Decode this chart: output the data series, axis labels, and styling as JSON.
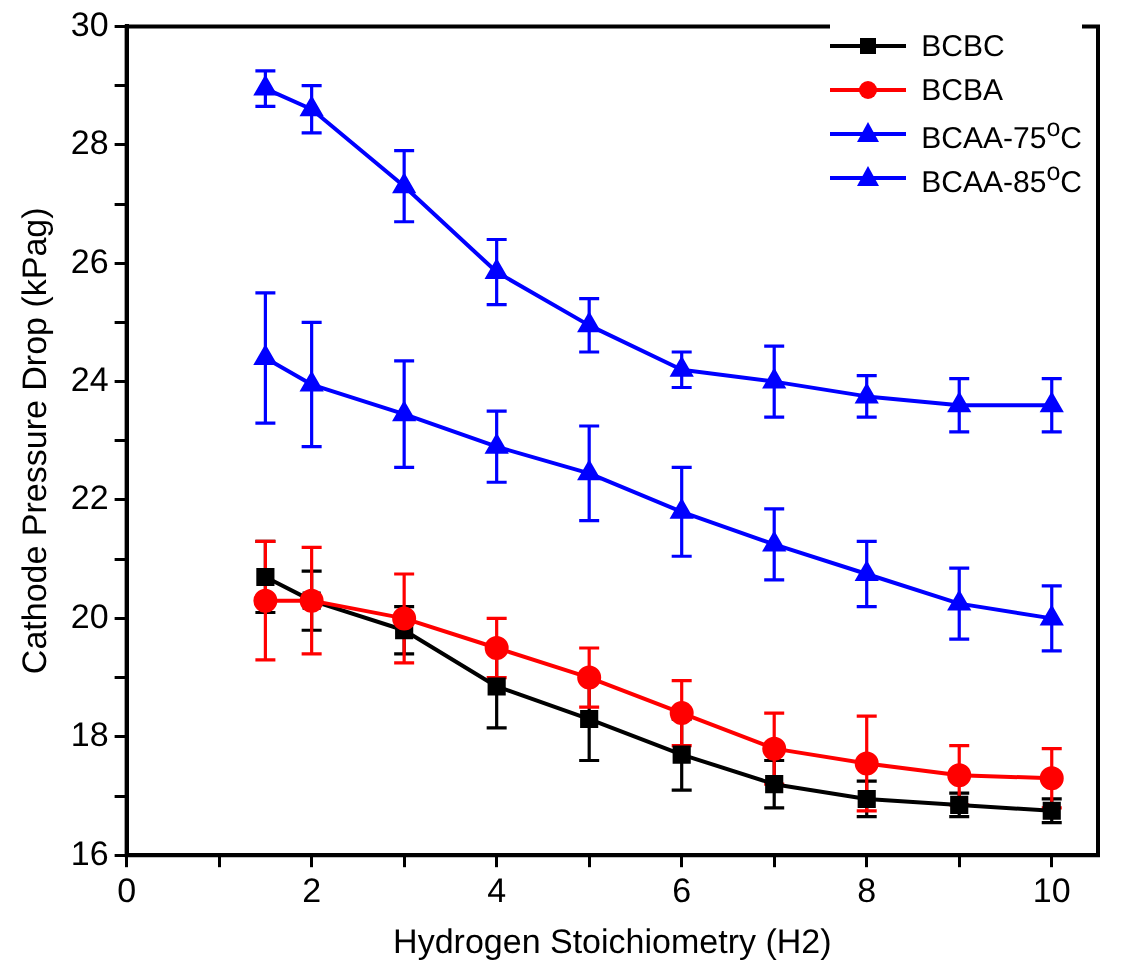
{
  "chart_data": {
    "type": "line",
    "xlabel": "Hydrogen Stoichiometry (H2)",
    "ylabel": "Cathode Pressure Drop (kPag)",
    "x": [
      1.5,
      2,
      3,
      4,
      5,
      6,
      7,
      8,
      9,
      10
    ],
    "xlim": [
      0,
      10.5
    ],
    "xticks": [
      0,
      {
        "value": 1,
        "label": null
      },
      2,
      {
        "value": 3,
        "label": null
      },
      4,
      {
        "value": 5,
        "label": null
      },
      6,
      {
        "value": 7,
        "label": null
      },
      8,
      {
        "value": 9,
        "label": null
      },
      10
    ],
    "ylim": [
      16,
      30
    ],
    "yticks": [
      16,
      {
        "value": 17,
        "label": null
      },
      18,
      {
        "value": 19,
        "label": null
      },
      20,
      {
        "value": 21,
        "label": null
      },
      22,
      {
        "value": 23,
        "label": null
      },
      24,
      {
        "value": 25,
        "label": null
      },
      26,
      {
        "value": 27,
        "label": null
      },
      28,
      {
        "value": 29,
        "label": null
      },
      30
    ],
    "grid": false,
    "legend": "top right",
    "line_style": "solid",
    "series": [
      {
        "name": "BCBC",
        "color": "#000000",
        "marker": "square",
        "values": [
          20.7,
          20.3,
          19.8,
          18.85,
          18.3,
          17.7,
          17.2,
          16.95,
          16.85,
          16.75
        ],
        "errors": [
          0.6,
          0.5,
          0.4,
          0.7,
          0.7,
          0.6,
          0.4,
          0.3,
          0.2,
          0.2
        ]
      },
      {
        "name": "BCBA",
        "color": "#ff0000",
        "marker": "circle",
        "values": [
          20.3,
          20.3,
          20.0,
          19.5,
          19.0,
          18.4,
          17.8,
          17.55,
          17.35,
          17.3
        ],
        "errors": [
          1.0,
          0.9,
          0.75,
          0.5,
          0.5,
          0.55,
          0.6,
          0.8,
          0.5,
          0.5
        ]
      },
      {
        "name": "BCAA-75$^{o}$C",
        "color": "#0000ff",
        "marker": "triangle",
        "values": [
          24.4,
          23.95,
          23.45,
          22.9,
          22.45,
          21.8,
          21.25,
          20.75,
          20.25,
          20.0
        ],
        "errors": [
          1.1,
          1.05,
          0.9,
          0.6,
          0.8,
          0.75,
          0.6,
          0.55,
          0.6,
          0.55
        ]
      },
      {
        "name": "BCAA-85$^{o}$C",
        "color": "#0000ff",
        "marker": "triangle",
        "values": [
          28.95,
          28.6,
          27.3,
          25.85,
          24.95,
          24.2,
          24.0,
          23.75,
          23.6,
          23.6
        ],
        "errors": [
          0.3,
          0.4,
          0.6,
          0.55,
          0.45,
          0.3,
          0.6,
          0.35,
          0.45,
          0.45
        ]
      }
    ]
  }
}
